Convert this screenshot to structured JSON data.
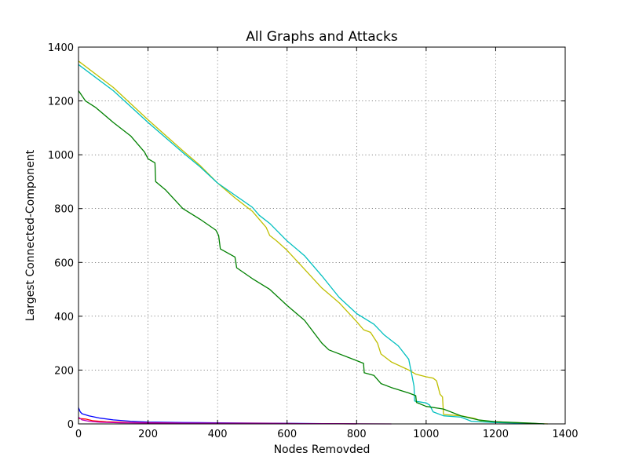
{
  "chart_data": {
    "type": "line",
    "title": "All Graphs and Attacks",
    "xlabel": "Nodes Removded",
    "ylabel": "Largest Connected-Component",
    "xlim": [
      0,
      1400
    ],
    "ylim": [
      0,
      1400
    ],
    "xticks": [
      "0",
      "200",
      "400",
      "600",
      "800",
      "1000",
      "1200",
      "1400"
    ],
    "yticks": [
      "0",
      "200",
      "400",
      "600",
      "800",
      "1000",
      "1200",
      "1400"
    ],
    "grid": true,
    "series": [
      {
        "color": "#bfbf00",
        "points": [
          [
            0,
            1348
          ],
          [
            100,
            1250
          ],
          [
            200,
            1130
          ],
          [
            300,
            1015
          ],
          [
            350,
            960
          ],
          [
            400,
            895
          ],
          [
            450,
            840
          ],
          [
            500,
            790
          ],
          [
            520,
            760
          ],
          [
            540,
            730
          ],
          [
            550,
            700
          ],
          [
            570,
            680
          ],
          [
            600,
            645
          ],
          [
            650,
            575
          ],
          [
            700,
            505
          ],
          [
            750,
            450
          ],
          [
            800,
            380
          ],
          [
            820,
            350
          ],
          [
            840,
            340
          ],
          [
            860,
            300
          ],
          [
            870,
            260
          ],
          [
            900,
            230
          ],
          [
            950,
            200
          ],
          [
            970,
            185
          ],
          [
            1000,
            175
          ],
          [
            1020,
            170
          ],
          [
            1030,
            160
          ],
          [
            1040,
            110
          ],
          [
            1047,
            100
          ],
          [
            1050,
            35
          ],
          [
            1100,
            30
          ],
          [
            1140,
            20
          ],
          [
            1160,
            10
          ],
          [
            1200,
            8
          ],
          [
            1250,
            5
          ],
          [
            1300,
            2
          ],
          [
            1350,
            0
          ]
        ]
      },
      {
        "color": "#00bfbf",
        "points": [
          [
            0,
            1335
          ],
          [
            100,
            1238
          ],
          [
            200,
            1120
          ],
          [
            300,
            1008
          ],
          [
            350,
            955
          ],
          [
            400,
            895
          ],
          [
            450,
            850
          ],
          [
            500,
            805
          ],
          [
            520,
            775
          ],
          [
            550,
            745
          ],
          [
            600,
            680
          ],
          [
            650,
            625
          ],
          [
            700,
            550
          ],
          [
            750,
            470
          ],
          [
            800,
            410
          ],
          [
            850,
            370
          ],
          [
            880,
            330
          ],
          [
            920,
            290
          ],
          [
            950,
            240
          ],
          [
            960,
            175
          ],
          [
            965,
            140
          ],
          [
            967,
            85
          ],
          [
            1000,
            78
          ],
          [
            1010,
            70
          ],
          [
            1020,
            45
          ],
          [
            1050,
            30
          ],
          [
            1100,
            25
          ],
          [
            1130,
            10
          ],
          [
            1200,
            5
          ],
          [
            1300,
            2
          ],
          [
            1340,
            0
          ]
        ]
      },
      {
        "color": "#008000",
        "points": [
          [
            0,
            1238
          ],
          [
            20,
            1200
          ],
          [
            50,
            1175
          ],
          [
            100,
            1120
          ],
          [
            150,
            1070
          ],
          [
            190,
            1010
          ],
          [
            200,
            985
          ],
          [
            220,
            970
          ],
          [
            222,
            900
          ],
          [
            250,
            870
          ],
          [
            300,
            800
          ],
          [
            350,
            760
          ],
          [
            395,
            720
          ],
          [
            403,
            700
          ],
          [
            408,
            650
          ],
          [
            450,
            620
          ],
          [
            455,
            580
          ],
          [
            500,
            540
          ],
          [
            550,
            500
          ],
          [
            600,
            440
          ],
          [
            650,
            385
          ],
          [
            700,
            300
          ],
          [
            720,
            275
          ],
          [
            800,
            235
          ],
          [
            820,
            225
          ],
          [
            822,
            190
          ],
          [
            850,
            180
          ],
          [
            870,
            150
          ],
          [
            900,
            135
          ],
          [
            950,
            115
          ],
          [
            970,
            105
          ],
          [
            972,
            80
          ],
          [
            1000,
            65
          ],
          [
            1050,
            55
          ],
          [
            1100,
            30
          ],
          [
            1150,
            15
          ],
          [
            1200,
            8
          ],
          [
            1300,
            3
          ],
          [
            1340,
            0
          ]
        ]
      },
      {
        "color": "#0000ff",
        "points": [
          [
            0,
            60
          ],
          [
            5,
            45
          ],
          [
            10,
            38
          ],
          [
            30,
            30
          ],
          [
            60,
            22
          ],
          [
            100,
            15
          ],
          [
            150,
            10
          ],
          [
            200,
            7
          ],
          [
            300,
            5
          ],
          [
            400,
            4
          ],
          [
            600,
            2
          ],
          [
            800,
            0
          ]
        ]
      },
      {
        "color": "#ff0000",
        "points": [
          [
            0,
            20
          ],
          [
            20,
            18
          ],
          [
            40,
            12
          ],
          [
            80,
            8
          ],
          [
            150,
            5
          ],
          [
            300,
            3
          ],
          [
            500,
            2
          ],
          [
            800,
            0
          ]
        ]
      },
      {
        "color": "#bf00bf",
        "points": [
          [
            0,
            25
          ],
          [
            10,
            15
          ],
          [
            30,
            10
          ],
          [
            60,
            6
          ],
          [
            120,
            4
          ],
          [
            250,
            3
          ],
          [
            400,
            2
          ],
          [
            700,
            1
          ],
          [
            900,
            0
          ]
        ]
      }
    ]
  }
}
